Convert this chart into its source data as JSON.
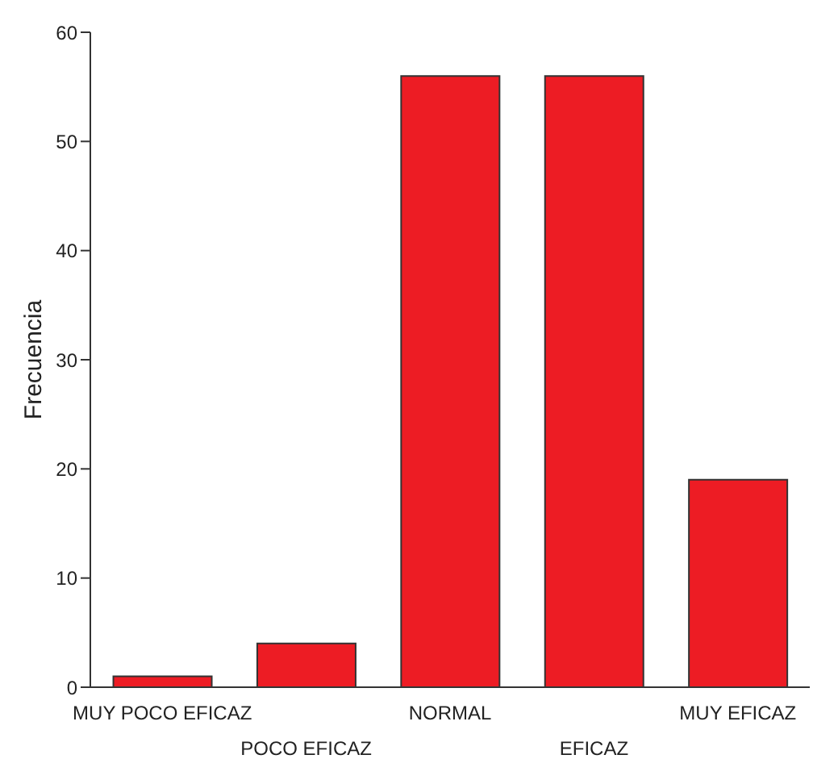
{
  "chart_data": {
    "type": "bar",
    "ylabel": "Frecuencia",
    "categories": [
      "MUY POCO EFICAZ",
      "POCO EFICAZ",
      "NORMAL",
      "EFICAZ",
      "MUY EFICAZ"
    ],
    "values": [
      1,
      4,
      56,
      56,
      19
    ],
    "color": "#ed1c24",
    "ylim": [
      0,
      60
    ],
    "yticks": [
      0,
      10,
      20,
      30,
      40,
      50,
      60
    ],
    "grid": false
  }
}
